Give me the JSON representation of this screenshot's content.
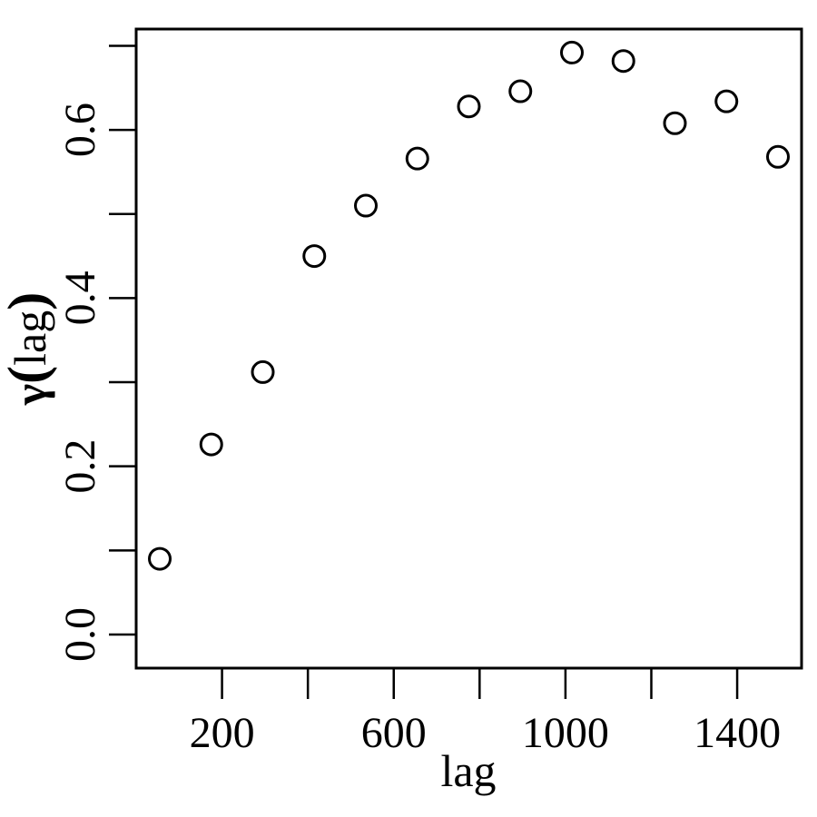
{
  "chart_data": {
    "type": "scatter",
    "title": "",
    "xlabel": "lag",
    "ylabel": {
      "symbol": "γ",
      "open": "(",
      "var": "lag",
      "close": ")"
    },
    "xlim": [
      0,
      1550
    ],
    "ylim": [
      -0.04,
      0.72
    ],
    "x_ticks": [
      200,
      400,
      600,
      800,
      1000,
      1200,
      1400
    ],
    "x_tick_labels": [
      "200",
      "",
      "600",
      "",
      "1000",
      "",
      "1400"
    ],
    "y_ticks": [
      0.0,
      0.1,
      0.2,
      0.3,
      0.4,
      0.5,
      0.6,
      0.7
    ],
    "y_tick_labels": [
      "0.0",
      "",
      "0.2",
      "",
      "0.4",
      "",
      "0.6",
      ""
    ],
    "grid": false,
    "legend": "none",
    "series": [
      {
        "x": [
          55,
          175,
          295,
          415,
          535,
          655,
          775,
          895,
          1015,
          1135,
          1255,
          1375,
          1495
        ],
        "y": [
          0.09,
          0.226,
          0.312,
          0.45,
          0.51,
          0.566,
          0.628,
          0.646,
          0.692,
          0.682,
          0.608,
          0.634,
          0.568
        ]
      }
    ]
  }
}
